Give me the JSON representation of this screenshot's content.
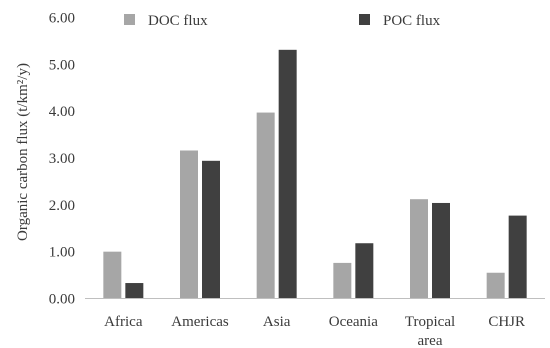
{
  "chart_data": {
    "type": "bar",
    "title": "",
    "xlabel": "",
    "ylabel": "Organic carbon flux (t/km²/y)",
    "ylim": [
      0,
      6
    ],
    "yticks": [
      "0.00",
      "1.00",
      "2.00",
      "3.00",
      "4.00",
      "5.00",
      "6.00"
    ],
    "categories": [
      [
        "Africa"
      ],
      [
        "Americas"
      ],
      [
        "Asia"
      ],
      [
        "Oceania"
      ],
      [
        "Tropical",
        "area"
      ],
      [
        "CHJR"
      ]
    ],
    "series": [
      {
        "name": "DOC flux",
        "color": "#a6a6a6",
        "values": [
          1.0,
          3.16,
          3.97,
          0.76,
          2.12,
          0.55
        ]
      },
      {
        "name": "POC flux",
        "color": "#404040",
        "values": [
          0.33,
          2.94,
          5.31,
          1.18,
          2.04,
          1.77
        ]
      }
    ],
    "grid": false,
    "legend_position": "top"
  }
}
